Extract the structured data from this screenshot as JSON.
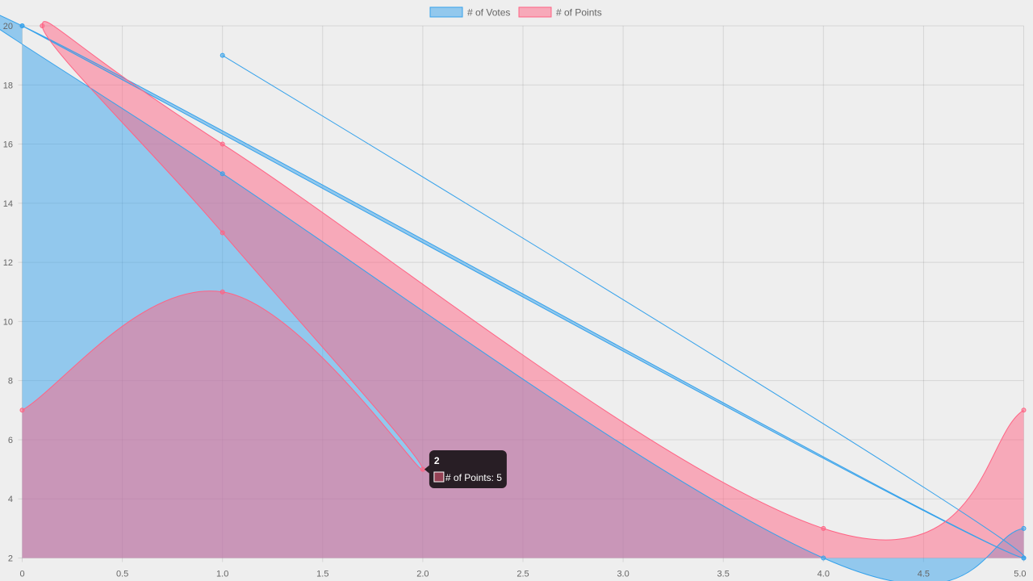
{
  "chart_data": {
    "type": "area",
    "title": "",
    "xlabel": "",
    "ylabel": "",
    "xlim": [
      0,
      5
    ],
    "ylim": [
      2,
      20
    ],
    "x_ticks": [
      "0",
      "0.5",
      "1.0",
      "1.5",
      "2.0",
      "2.5",
      "3.0",
      "3.5",
      "4.0",
      "4.5",
      "5.0"
    ],
    "y_ticks": [
      "2",
      "4",
      "6",
      "8",
      "10",
      "12",
      "14",
      "16",
      "18",
      "20"
    ],
    "grid": true,
    "legend_position": "top",
    "series": [
      {
        "name": "# of Votes",
        "border_color": "#36a2eb",
        "fill_color": "rgba(54,162,235,0.5)",
        "points": [
          {
            "x": 0,
            "y": 20
          },
          {
            "x": 5,
            "y": 2
          },
          {
            "x": 1,
            "y": 19
          },
          {
            "x": 5,
            "y": 2
          },
          {
            "x": 0,
            "y": 20
          },
          {
            "x": 1,
            "y": 15
          },
          {
            "x": 4,
            "y": 2
          },
          {
            "x": 5,
            "y": 3
          }
        ]
      },
      {
        "name": "# of Points",
        "border_color": "#ff6384",
        "fill_color": "rgba(255,99,132,0.5)",
        "points": [
          {
            "x": 0,
            "y": 7
          },
          {
            "x": 1,
            "y": 11
          },
          {
            "x": 2,
            "y": 5
          },
          {
            "x": 1,
            "y": 13
          },
          {
            "x": 0.1,
            "y": 20
          },
          {
            "x": 1,
            "y": 16
          },
          {
            "x": 4,
            "y": 3
          },
          {
            "x": 5,
            "y": 7
          }
        ]
      }
    ],
    "tooltip": {
      "title": "2",
      "label": "# of Points: 5",
      "series_index": 1,
      "point_index": 2
    }
  }
}
